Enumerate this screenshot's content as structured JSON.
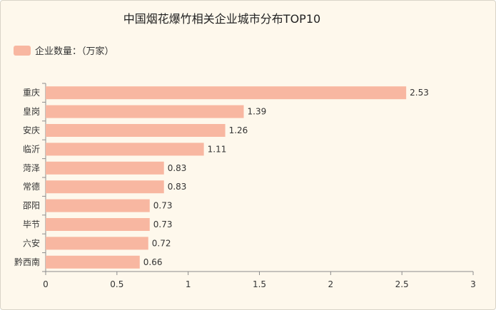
{
  "chart_data": {
    "type": "bar",
    "orientation": "horizontal",
    "title": "中国烟花爆竹相关企业城市分布TOP10",
    "categories": [
      "重庆",
      "皇岗",
      "安庆",
      "临沂",
      "菏泽",
      "常德",
      "邵阳",
      "毕节",
      "六安",
      "黔西南"
    ],
    "series": [
      {
        "name": "企业数量：（万家）",
        "values": [
          2.53,
          1.39,
          1.26,
          1.11,
          0.83,
          0.83,
          0.73,
          0.73,
          0.72,
          0.66
        ]
      }
    ],
    "data_labels": [
      "2.53",
      "1.39",
      "1.26",
      "1.11",
      "0.83",
      "0.83",
      "0.73",
      "0.73",
      "0.72",
      "0.66"
    ],
    "xlim": [
      0,
      3
    ],
    "x_ticks": [
      "0",
      "0.5",
      "1",
      "1.5",
      "2",
      "2.5",
      "3"
    ],
    "legend_position": "top-left",
    "grid": false,
    "bar_color": "#f8b7a1",
    "axis_color": "#8c8c8c"
  }
}
